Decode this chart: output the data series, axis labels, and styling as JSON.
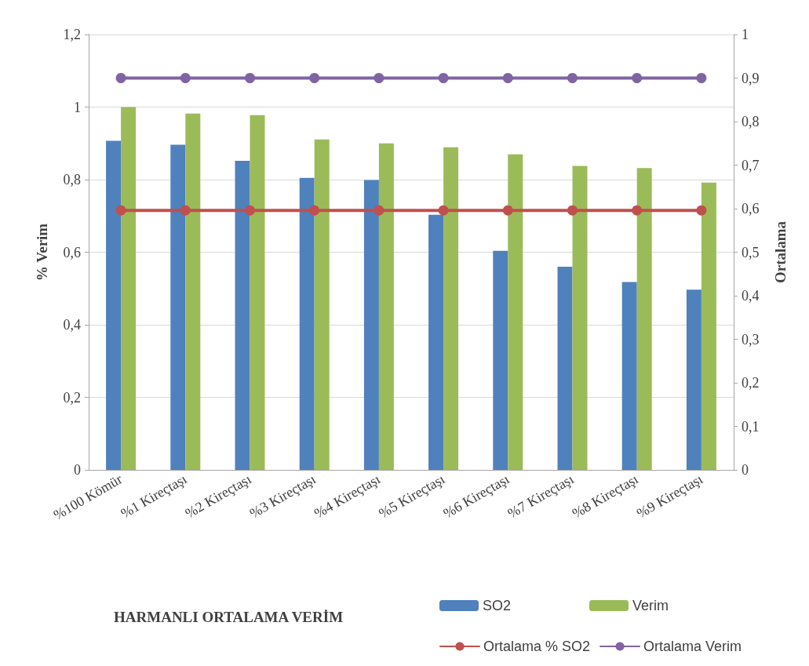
{
  "chart_data": {
    "type": "bar",
    "title": "HARMANLI ORTALAMA VERİM",
    "ylabel": "% Verim",
    "y2label": "Ortalama",
    "categories": [
      "%100 Kömür",
      "%1 Kireçtaşı",
      "%2 Kireçtaşı",
      "%3 Kireçtaşı",
      "%4 Kireçtaşı",
      "%5 Kireçtaşı",
      "%6 Kireçtaşı",
      "%7 Kireçtaşı",
      "%8 Kireçtaşı",
      "%9 Kireçtaşı"
    ],
    "series": [
      {
        "name": "SO2",
        "color": "#4f81bd",
        "values": [
          0.907,
          0.896,
          0.852,
          0.805,
          0.799,
          0.703,
          0.604,
          0.56,
          0.518,
          0.497
        ]
      },
      {
        "name": "Verim",
        "color": "#9bbb59",
        "values": [
          1.0,
          0.982,
          0.978,
          0.911,
          0.9,
          0.889,
          0.87,
          0.838,
          0.832,
          0.792
        ]
      },
      {
        "name": "Ortalama % SO2",
        "type": "line",
        "axis": "y2",
        "color": "#c0504d",
        "values": [
          0.596,
          0.596,
          0.596,
          0.596,
          0.596,
          0.596,
          0.596,
          0.596,
          0.596,
          0.596
        ]
      },
      {
        "name": "Ortalama Verim",
        "type": "line",
        "axis": "y2",
        "color": "#8064a2",
        "values": [
          0.9,
          0.9,
          0.9,
          0.9,
          0.9,
          0.9,
          0.9,
          0.9,
          0.9,
          0.9
        ]
      }
    ],
    "ylim": [
      0,
      1.2
    ],
    "yticks": [
      0,
      {
        "value": 0.2,
        "label": "0,2"
      },
      {
        "value": 0.4,
        "label": "0,4"
      },
      {
        "value": 0.6,
        "label": "0,6"
      },
      {
        "value": 0.8,
        "label": "0,8"
      },
      1,
      {
        "value": 1.2,
        "label": "1,2"
      }
    ],
    "y2lim": [
      0,
      1
    ],
    "y2ticks": [
      0,
      {
        "value": 0.1,
        "label": "0,1"
      },
      {
        "value": 0.2,
        "label": "0,2"
      },
      {
        "value": 0.3,
        "label": "0,3"
      },
      {
        "value": 0.4,
        "label": "0,4"
      },
      {
        "value": 0.5,
        "label": "0,5"
      },
      {
        "value": 0.6,
        "label": "0,6"
      },
      {
        "value": 0.7,
        "label": "0,7"
      },
      {
        "value": 0.8,
        "label": "0,8"
      },
      {
        "value": 0.9,
        "label": "0,9"
      },
      1
    ],
    "grid": "y",
    "legend": "bottom",
    "marker": "circle",
    "line_style": "solid"
  }
}
